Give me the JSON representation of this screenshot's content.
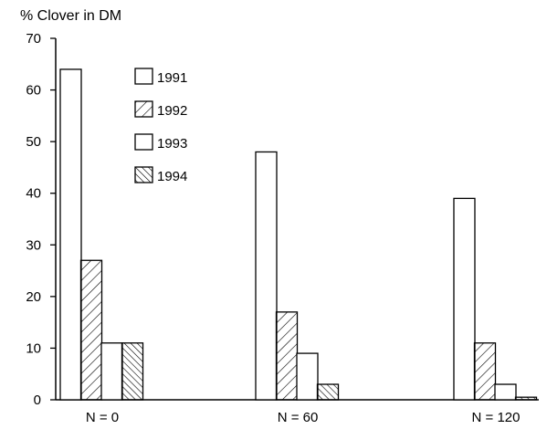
{
  "chart_data": {
    "type": "bar",
    "title": "% Clover in DM",
    "xlabel": "",
    "ylabel": "",
    "categories": [
      "N = 0",
      "N = 60",
      "N = 120"
    ],
    "ylim": [
      0,
      70
    ],
    "yticks": [
      0,
      10,
      20,
      30,
      40,
      50,
      60,
      70
    ],
    "legend_position": "top-left",
    "grid": false,
    "series": [
      {
        "name": "1991",
        "values": [
          64,
          48,
          39
        ],
        "pattern": "none"
      },
      {
        "name": "1992",
        "values": [
          27,
          17,
          11
        ],
        "pattern": "diagonal-up"
      },
      {
        "name": "1993",
        "values": [
          11,
          9,
          3
        ],
        "pattern": "none"
      },
      {
        "name": "1994",
        "values": [
          11,
          3,
          0.5
        ],
        "pattern": "diagonal-down"
      }
    ]
  }
}
